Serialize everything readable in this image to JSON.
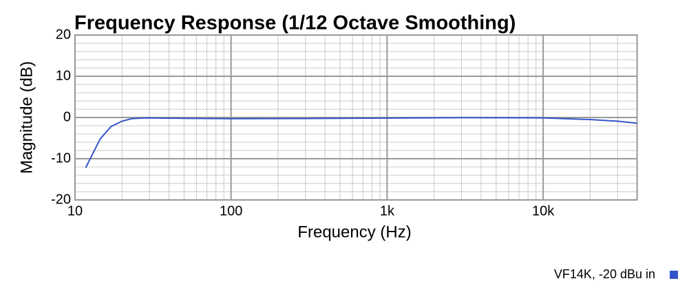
{
  "chart_data": {
    "type": "line",
    "title": "Frequency Response (1/12 Octave Smoothing)",
    "x_label": "Frequency (Hz)",
    "y_label": "Magnitude (dB)",
    "x_scale": "log",
    "grid": true,
    "legend": "bottom-right",
    "x": [
      11.7,
      14.5,
      17,
      20,
      23,
      28,
      50,
      100,
      300,
      1000,
      3000,
      10000,
      20000,
      30000,
      40000
    ],
    "series": [
      {
        "name": "VF14K, -20 dBu in",
        "color": "#3355cc",
        "values": [
          -12.2,
          -5.2,
          -2.2,
          -0.9,
          -0.3,
          -0.1,
          -0.2,
          -0.3,
          -0.25,
          -0.15,
          -0.05,
          -0.1,
          -0.5,
          -0.9,
          -1.4
        ]
      }
    ],
    "xlim": [
      10,
      40000
    ],
    "ylim": [
      -20,
      20
    ],
    "xticks": [
      10,
      100,
      {
        "value": 1000,
        "label": "1k"
      },
      {
        "value": 10000,
        "label": "10k"
      }
    ],
    "yticks": [
      -20,
      -10,
      0,
      10,
      20
    ],
    "xminorticks": [
      20,
      30,
      40,
      50,
      60,
      70,
      80,
      90,
      200,
      300,
      400,
      500,
      600,
      700,
      800,
      900,
      2000,
      3000,
      4000,
      5000,
      6000,
      7000,
      8000,
      9000,
      20000,
      30000,
      40000
    ],
    "yminorticks": [
      -18,
      -16,
      -14,
      -12,
      -8,
      -6,
      -4,
      -2,
      2,
      4,
      6,
      8,
      12,
      14,
      16,
      18
    ]
  }
}
